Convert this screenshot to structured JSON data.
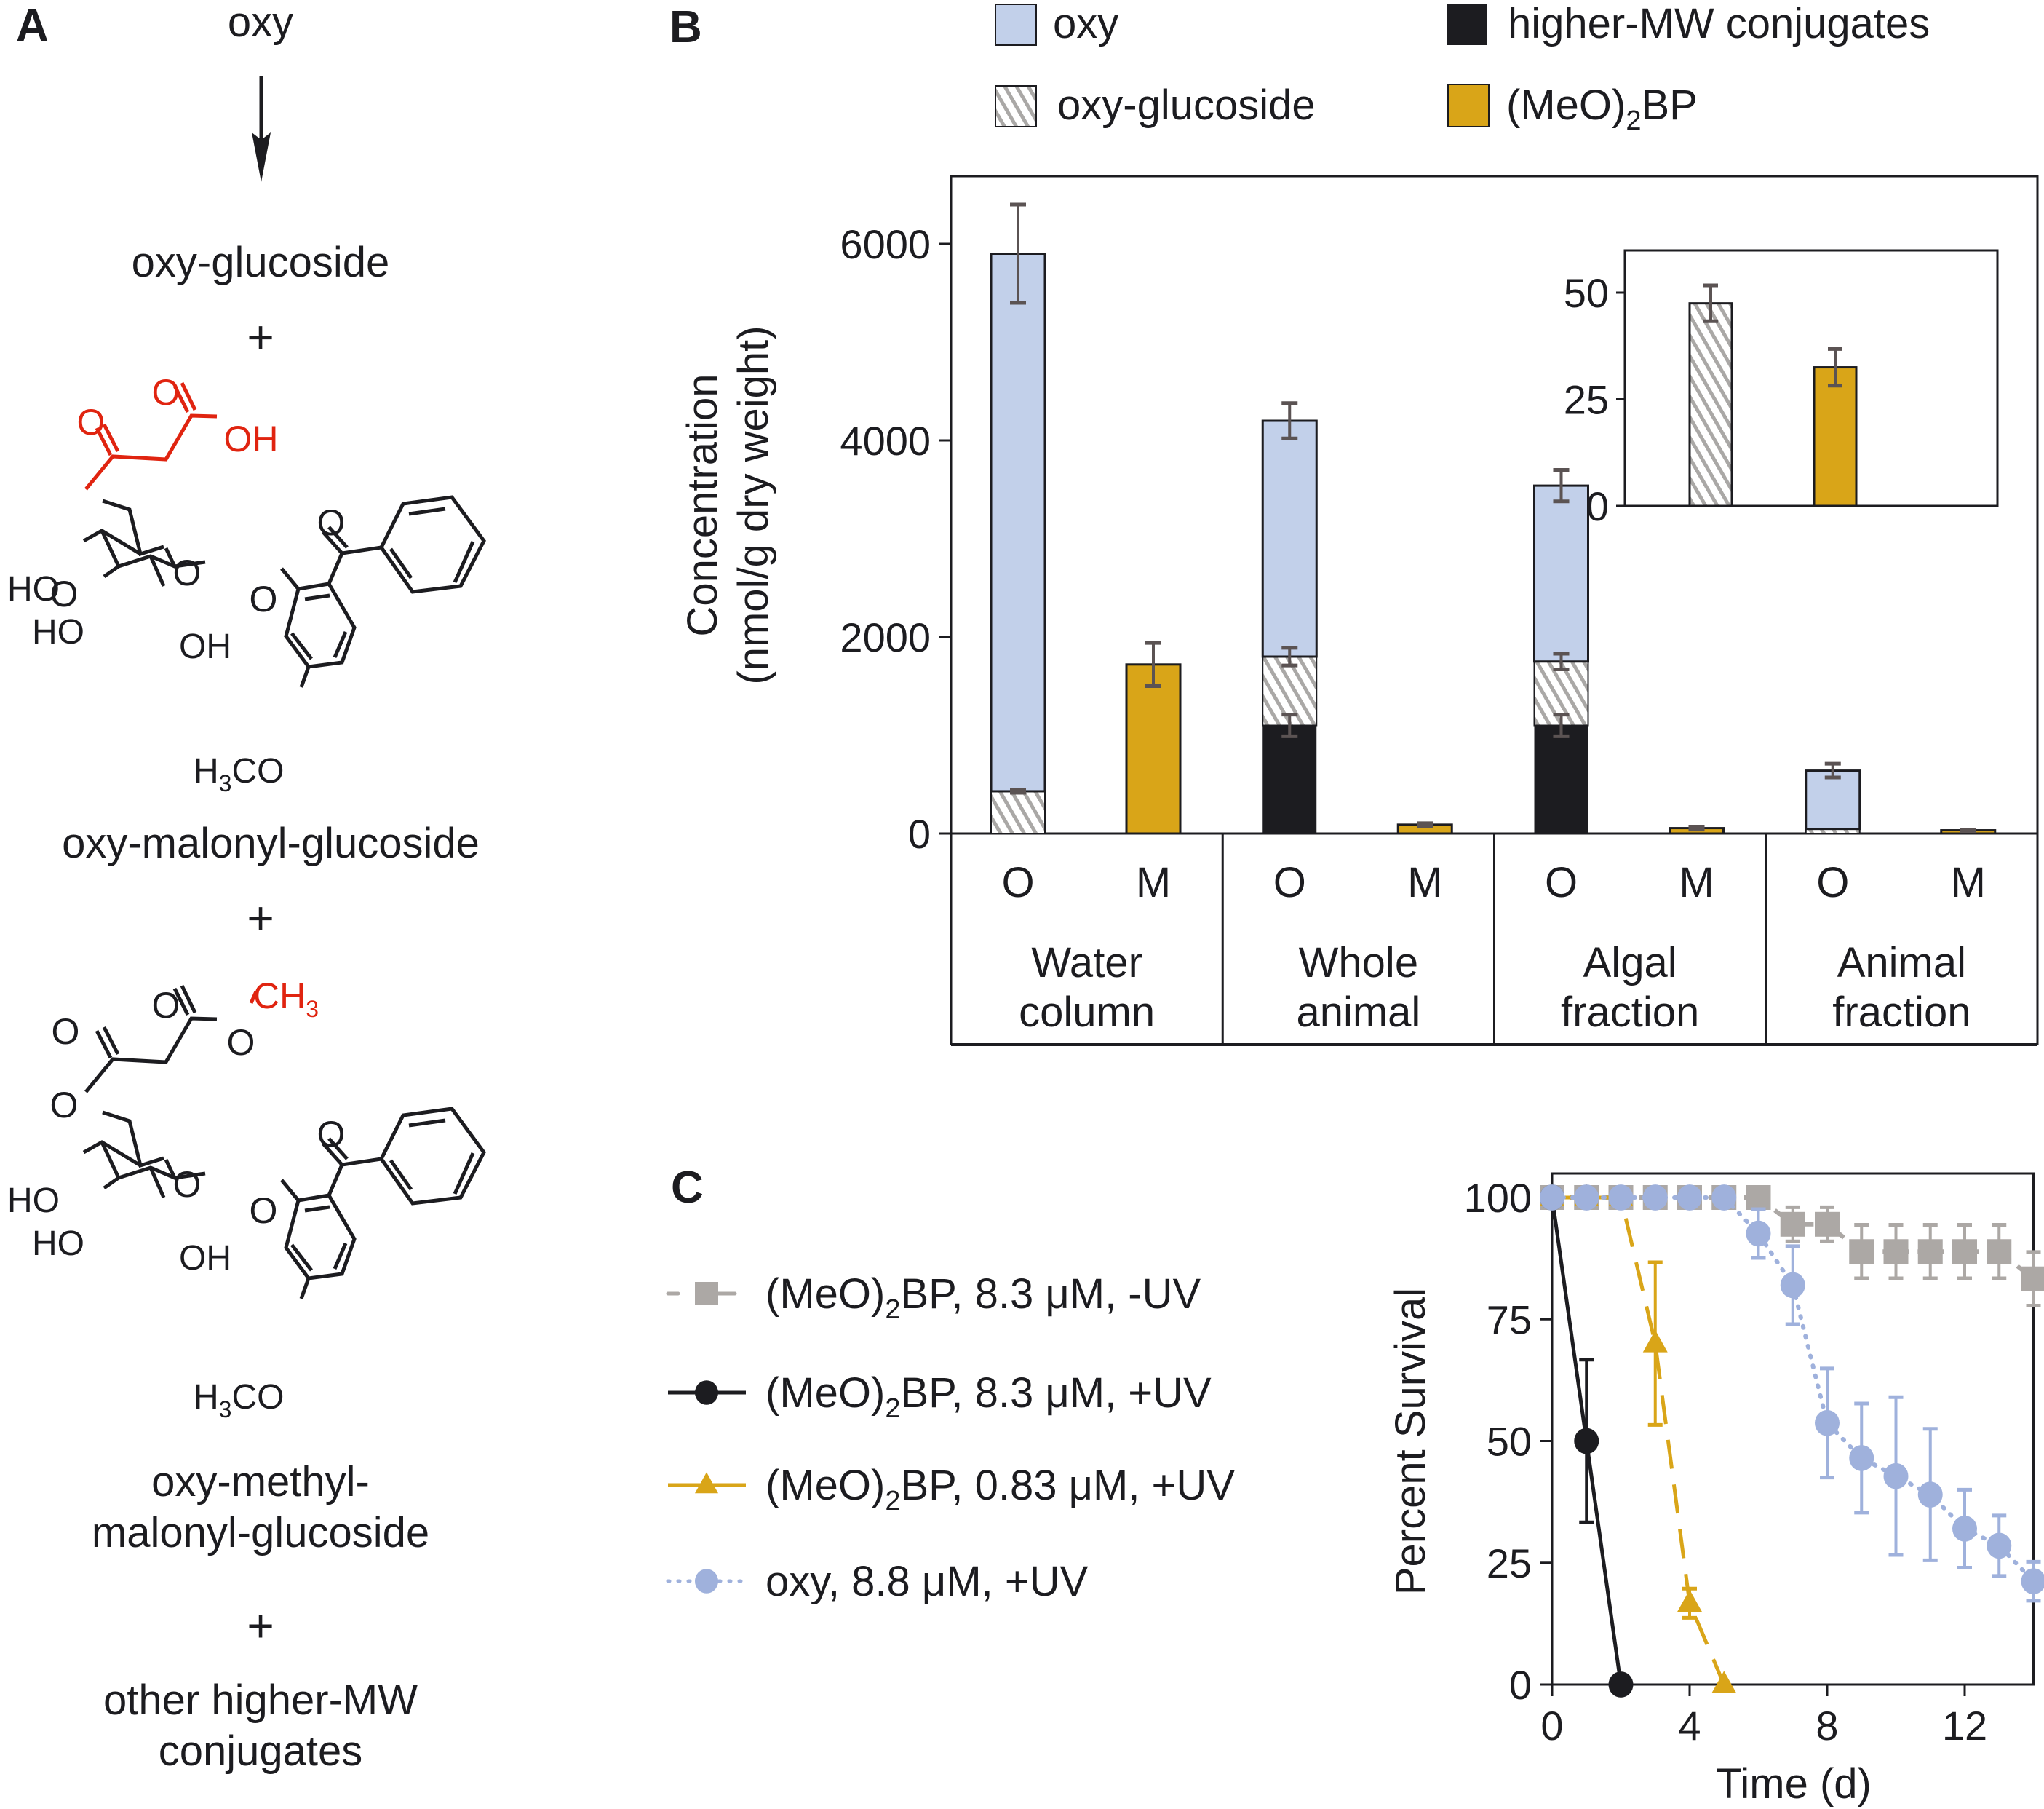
{
  "panel_labels": {
    "a": "A",
    "b": "B",
    "c": "C"
  },
  "colors": {
    "oxy": "#c2d0ea",
    "glucoside_stripe": "#aaa8a6",
    "higher_mw": "#1c1c20",
    "meo2bp": "#d9a518",
    "error_bar": "#5b5353",
    "highlight_red": "#e02410",
    "series_grey": "#aca8a5",
    "series_black": "#1c1c20",
    "series_gold": "#d9a518",
    "series_blue": "#9fb1dc"
  },
  "panel_a": {
    "start": "oxy",
    "step1": "oxy-glucoside",
    "plus": "+",
    "compound2": "oxy-malonyl-glucoside",
    "compound3_line1": "oxy-methyl-",
    "compound3_line2": "malonyl-glucoside",
    "final_line1": "other higher-MW",
    "final_line2": "conjugates",
    "atoms": {
      "O": "O",
      "OH": "OH",
      "HO": "HO",
      "CH": "CH",
      "sub3": "3",
      "H": "H",
      "CO": "CO"
    }
  },
  "chart_data": [
    {
      "type": "bar",
      "stacked": true,
      "panel": "B",
      "ylabel_line1": "Concentration",
      "ylabel_line2": "(nmol/g dry weight)",
      "ylim": [
        0,
        6500
      ],
      "yticks": [
        0,
        2000,
        4000,
        6000
      ],
      "ytick_labels": [
        "0",
        "2000",
        "4000",
        "6000"
      ],
      "legend": [
        {
          "key": "oxy",
          "label": "oxy"
        },
        {
          "key": "higher_mw",
          "label": "higher-MW conjugates"
        },
        {
          "key": "glucoside",
          "label": "oxy-glucoside"
        },
        {
          "key": "meo2bp",
          "label_pre": "(MeO)",
          "label_sub": "2",
          "label_post": "BP"
        }
      ],
      "legend_position": "top",
      "groups": [
        {
          "line1": "Water",
          "line2": "column"
        },
        {
          "line1": "Whole",
          "line2": "animal"
        },
        {
          "line1": "Algal",
          "line2": "fraction"
        },
        {
          "line1": "Animal",
          "line2": "fraction"
        }
      ],
      "bars": [
        {
          "group": 0,
          "label": "O",
          "higher_mw": 0,
          "glucoside": 430,
          "oxy": 5470,
          "err_total": 500,
          "err_glucoside": 15,
          "err_higher_mw": 0
        },
        {
          "group": 0,
          "label": "M",
          "meo2bp": 1720,
          "err_total": 220
        },
        {
          "group": 1,
          "label": "O",
          "higher_mw": 1100,
          "glucoside": 700,
          "oxy": 2400,
          "err_total": 180,
          "err_glucoside": 90,
          "err_higher_mw": 110
        },
        {
          "group": 1,
          "label": "M",
          "meo2bp": 90,
          "err_total": 15
        },
        {
          "group": 2,
          "label": "O",
          "higher_mw": 1100,
          "glucoside": 650,
          "oxy": 1790,
          "err_total": 160,
          "err_glucoside": 80,
          "err_higher_mw": 110
        },
        {
          "group": 2,
          "label": "M",
          "meo2bp": 55,
          "err_total": 15
        },
        {
          "group": 3,
          "label": "O",
          "higher_mw": 0,
          "glucoside": 47,
          "oxy": 593,
          "err_total": 70,
          "err_glucoside": 0,
          "err_higher_mw": 0
        },
        {
          "group": 3,
          "label": "M",
          "meo2bp": 33,
          "err_total": 8
        }
      ]
    },
    {
      "type": "bar",
      "panel": "B-inset",
      "ylim": [
        0,
        58
      ],
      "yticks": [
        0,
        25,
        50
      ],
      "ytick_labels": [
        "0",
        "25",
        "50"
      ],
      "bars": [
        {
          "key": "glucoside",
          "value": 47.5,
          "err": 4.2
        },
        {
          "key": "meo2bp",
          "value": 32.5,
          "err": 4.3
        }
      ]
    },
    {
      "type": "line",
      "panel": "C",
      "xlabel": "Time (d)",
      "ylabel": "Percent Survival",
      "xlim": [
        0,
        14
      ],
      "ylim": [
        0,
        100
      ],
      "xticks": [
        0,
        4,
        8,
        12
      ],
      "xtick_labels": [
        "0",
        "4",
        "8",
        "12"
      ],
      "yticks": [
        0,
        25,
        50,
        75,
        100
      ],
      "ytick_labels": [
        "0",
        "25",
        "50",
        "75",
        "100"
      ],
      "legend_position": "left",
      "series": [
        {
          "key": "grey",
          "marker": "square",
          "line": "dashed",
          "label_pre": "(MeO)",
          "label_sub": "2",
          "label_post": "BP, 8.3 μM, -UV",
          "x": [
            0,
            1,
            2,
            3,
            4,
            5,
            6,
            7,
            8,
            9,
            10,
            11,
            12,
            13,
            14
          ],
          "y": [
            100,
            100,
            100,
            100,
            100,
            100,
            100,
            94.5,
            94.5,
            88.9,
            88.9,
            88.9,
            88.9,
            88.9,
            83.3
          ],
          "err": [
            0,
            0,
            0,
            0,
            0,
            0,
            0,
            3.5,
            3.5,
            5.5,
            5.5,
            5.5,
            5.5,
            5.5,
            5.5
          ]
        },
        {
          "key": "black",
          "marker": "circle",
          "line": "solid",
          "label_pre": "(MeO)",
          "label_sub": "2",
          "label_post": "BP, 8.3 μM, +UV",
          "x": [
            0,
            1,
            2
          ],
          "y": [
            100,
            50,
            0
          ],
          "err": [
            0,
            16.7,
            0
          ]
        },
        {
          "key": "gold",
          "marker": "triangle",
          "line": "longdash",
          "label_pre": "(MeO)",
          "label_sub": "2",
          "label_post": "BP, 0.83 μM, +UV",
          "x": [
            0,
            1,
            2,
            3,
            4,
            5
          ],
          "y": [
            100,
            100,
            100,
            70,
            16.7,
            0
          ],
          "err": [
            0,
            0,
            0,
            16.7,
            3,
            0
          ]
        },
        {
          "key": "blue",
          "marker": "circle",
          "line": "dotted",
          "label_pre": "oxy, 8.8 μM, +UV",
          "label_sub": "",
          "label_post": "",
          "x": [
            0,
            1,
            2,
            3,
            4,
            5,
            6,
            7,
            8,
            9,
            10,
            11,
            12,
            13,
            14
          ],
          "y": [
            100,
            100,
            100,
            100,
            100,
            100,
            92.6,
            82,
            53.7,
            46.5,
            42.8,
            39,
            32,
            28.5,
            21.2
          ],
          "err": [
            0,
            0,
            0,
            0,
            0,
            0,
            5,
            8,
            11.2,
            11.2,
            16.2,
            13.5,
            8,
            6.2,
            4
          ]
        }
      ]
    }
  ]
}
